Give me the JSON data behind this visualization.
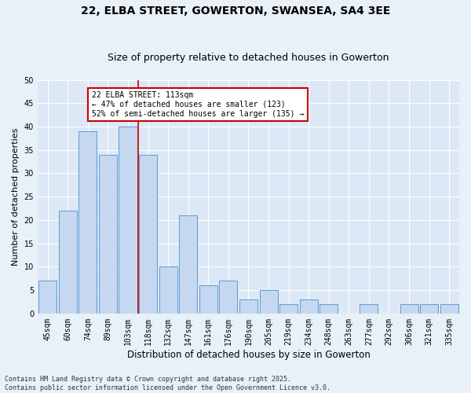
{
  "title": "22, ELBA STREET, GOWERTON, SWANSEA, SA4 3EE",
  "subtitle": "Size of property relative to detached houses in Gowerton",
  "xlabel": "Distribution of detached houses by size in Gowerton",
  "ylabel": "Number of detached properties",
  "categories": [
    "45sqm",
    "60sqm",
    "74sqm",
    "89sqm",
    "103sqm",
    "118sqm",
    "132sqm",
    "147sqm",
    "161sqm",
    "176sqm",
    "190sqm",
    "205sqm",
    "219sqm",
    "234sqm",
    "248sqm",
    "263sqm",
    "277sqm",
    "292sqm",
    "306sqm",
    "321sqm",
    "335sqm"
  ],
  "values": [
    7,
    22,
    39,
    34,
    40,
    34,
    10,
    21,
    6,
    7,
    3,
    5,
    2,
    3,
    2,
    0,
    2,
    0,
    2,
    2,
    2
  ],
  "bar_color": "#c5d8f0",
  "bar_edge_color": "#5b9bd5",
  "vline_index": 5,
  "annotation_text": "22 ELBA STREET: 113sqm\n← 47% of detached houses are smaller (123)\n52% of semi-detached houses are larger (135) →",
  "annotation_box_color": "#ffffff",
  "annotation_box_edge_color": "#cc0000",
  "vline_color": "#cc0000",
  "bg_color": "#e8f0f8",
  "plot_bg_color": "#dce8f5",
  "grid_color": "#ffffff",
  "title_fontsize": 10,
  "subtitle_fontsize": 9,
  "xlabel_fontsize": 8.5,
  "ylabel_fontsize": 8,
  "tick_fontsize": 7,
  "footer_text": "Contains HM Land Registry data © Crown copyright and database right 2025.\nContains public sector information licensed under the Open Government Licence v3.0.",
  "ylim": [
    0,
    50
  ],
  "yticks": [
    0,
    5,
    10,
    15,
    20,
    25,
    30,
    35,
    40,
    45,
    50
  ]
}
